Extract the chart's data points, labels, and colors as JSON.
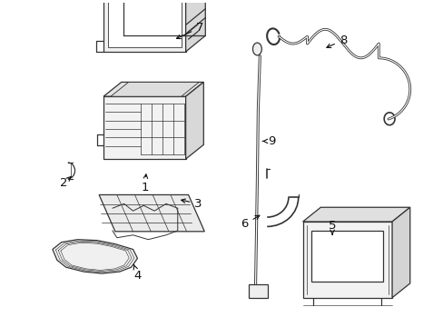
{
  "background_color": "#ffffff",
  "line_color": "#333333",
  "text_color": "#111111",
  "fig_width": 4.89,
  "fig_height": 3.6,
  "dpi": 100
}
